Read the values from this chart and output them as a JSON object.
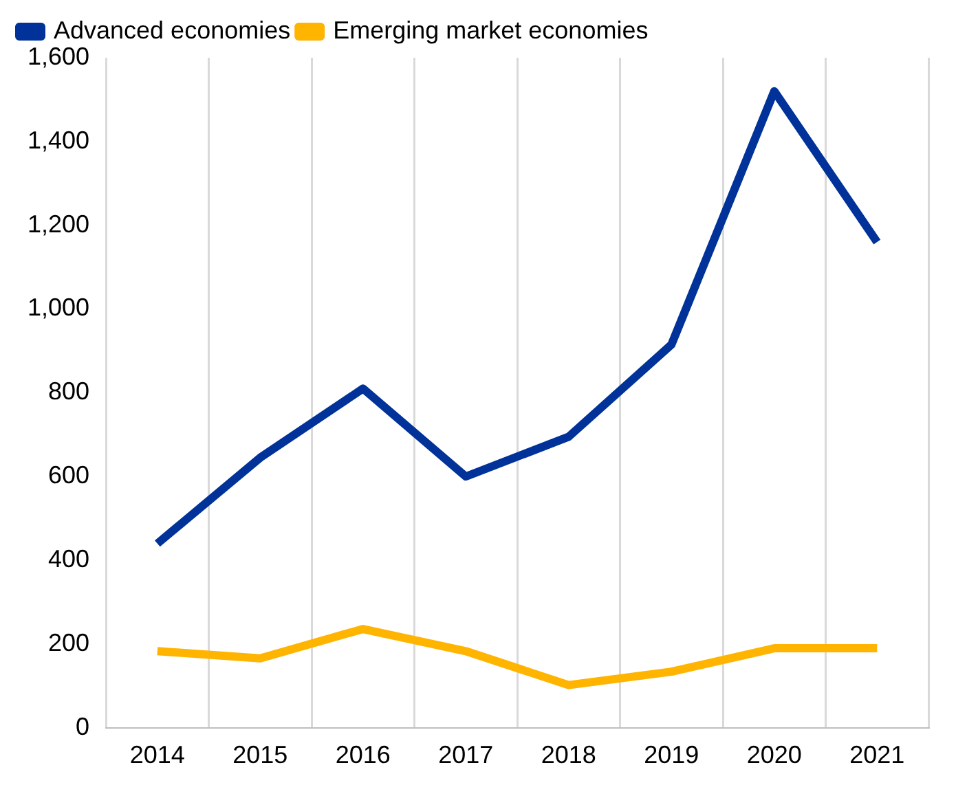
{
  "chart_data": {
    "type": "line",
    "categories": [
      "2014",
      "2015",
      "2016",
      "2017",
      "2018",
      "2019",
      "2020",
      "2021"
    ],
    "series": [
      {
        "name": "Advanced economies",
        "color": "#003299",
        "values": [
          440,
          645,
          810,
          600,
          695,
          915,
          1520,
          1160
        ]
      },
      {
        "name": "Emerging market economies",
        "color": "#ffb400",
        "values": [
          183,
          166,
          236,
          183,
          102,
          134,
          190,
          190
        ]
      }
    ],
    "ylim": [
      0,
      1600
    ],
    "yticks": [
      0,
      {
        "value": 200,
        "label": "200"
      },
      {
        "value": 400,
        "label": "400"
      },
      {
        "value": 600,
        "label": "600"
      },
      {
        "value": 800,
        "label": "800"
      },
      {
        "value": 1000,
        "label": "1,000"
      },
      {
        "value": 1200,
        "label": "1,200"
      },
      {
        "value": 1400,
        "label": "1,400"
      },
      {
        "value": 1600,
        "label": "1,600"
      }
    ],
    "grid": "x",
    "legend": "top left",
    "marker": "none",
    "line_style": "solid"
  }
}
